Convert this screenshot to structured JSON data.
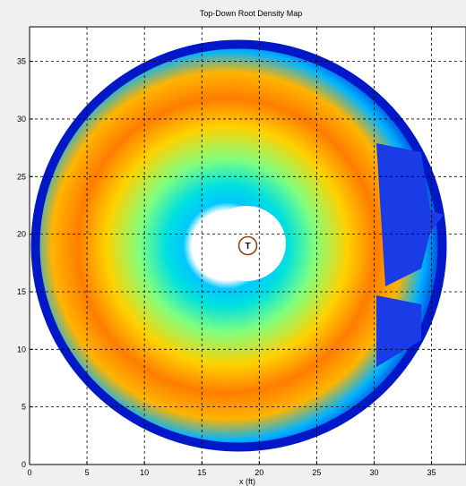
{
  "window": {
    "title": "Top-Down Root Density Map"
  },
  "chart_data": {
    "type": "heatmap",
    "title": "Top-Down Root Density Map",
    "xlabel": "x (ft)",
    "ylabel": "",
    "xlim": [
      0,
      38
    ],
    "ylim": [
      0,
      38
    ],
    "x_ticks": [
      0,
      5,
      10,
      15,
      20,
      25,
      30,
      35
    ],
    "y_ticks": [
      0,
      5,
      10,
      15,
      20,
      25,
      30,
      35
    ],
    "grid": true,
    "colormap": "jet",
    "marker": {
      "label": "T",
      "x": 19,
      "y": 19,
      "color": "#8b4513"
    },
    "colors": {
      "background": "#ffffff",
      "grid": "#000000",
      "marker": "#8b4513"
    }
  }
}
